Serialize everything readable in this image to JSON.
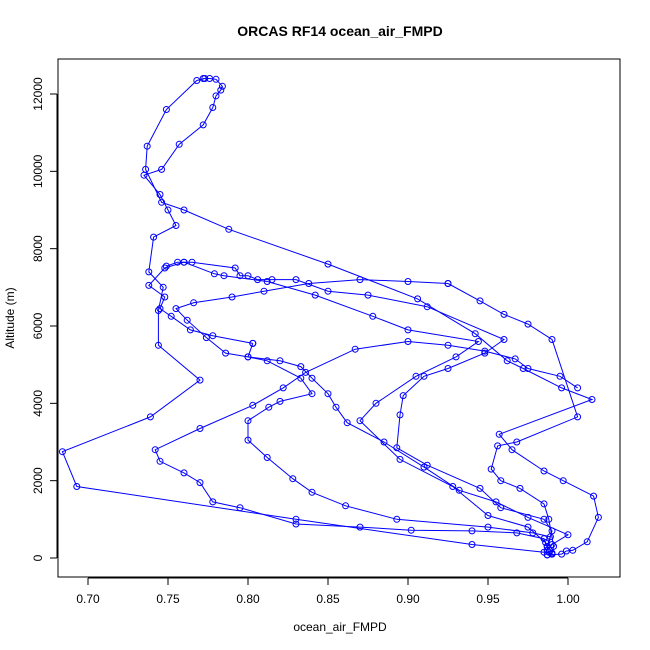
{
  "chart_data": {
    "type": "line",
    "title": "ORCAS RF14 ocean_air_FMPD",
    "xlabel": "ocean_air_FMPD",
    "ylabel": "Altitude (m)",
    "xlim": [
      0.675,
      1.025
    ],
    "ylim": [
      -300,
      12900
    ],
    "xticks": [
      0.7,
      0.75,
      0.8,
      0.85,
      0.9,
      0.95,
      1.0
    ],
    "xtick_labels": [
      "0.70",
      "0.75",
      "0.80",
      "0.85",
      "0.90",
      "0.95",
      "1.00"
    ],
    "yticks": [
      0,
      2000,
      4000,
      6000,
      8000,
      10000,
      12000
    ],
    "ytick_labels": [
      "0",
      "2000",
      "4000",
      "6000",
      "8000",
      "10000",
      "12000"
    ],
    "grid": false,
    "color": "#0000ff",
    "markers": "open-circle",
    "series": [
      {
        "values": [
          [
            0.772,
            12400
          ],
          [
            0.776,
            12400
          ],
          [
            0.78,
            12380
          ],
          [
            0.784,
            12200
          ],
          [
            0.783,
            12100
          ],
          [
            0.78,
            11950
          ],
          [
            0.778,
            11650
          ],
          [
            0.772,
            11200
          ],
          [
            0.757,
            10700
          ],
          [
            0.746,
            10050
          ],
          [
            0.735,
            9900
          ],
          [
            0.745,
            9400
          ],
          [
            0.75,
            9000
          ],
          [
            0.755,
            8600
          ],
          [
            0.741,
            8300
          ],
          [
            0.738,
            7400
          ],
          [
            0.747,
            7000
          ],
          [
            0.744,
            6400
          ],
          [
            0.744,
            5500
          ],
          [
            0.77,
            4600
          ],
          [
            0.739,
            3650
          ],
          [
            0.684,
            2750
          ],
          [
            0.693,
            1850
          ],
          [
            0.83,
            1000
          ],
          [
            0.94,
            350
          ],
          [
            0.985,
            150
          ],
          [
            0.99,
            130
          ],
          [
            0.987,
            80
          ]
        ]
      },
      {
        "values": [
          [
            0.987,
            80
          ],
          [
            0.996,
            100
          ],
          [
            0.999,
            180
          ],
          [
            1.003,
            200
          ],
          [
            1.012,
            420
          ],
          [
            1.019,
            1050
          ],
          [
            1.016,
            1600
          ],
          [
            0.997,
            2000
          ],
          [
            0.985,
            2250
          ],
          [
            0.965,
            2800
          ],
          [
            0.957,
            3200
          ],
          [
            1.015,
            4100
          ],
          [
            0.996,
            4400
          ],
          [
            0.972,
            4900
          ],
          [
            0.962,
            5100
          ],
          [
            0.942,
            5800
          ],
          [
            0.906,
            6700
          ],
          [
            0.85,
            7600
          ],
          [
            0.788,
            8500
          ],
          [
            0.76,
            9000
          ],
          [
            0.746,
            9200
          ],
          [
            0.736,
            10050
          ],
          [
            0.737,
            10650
          ],
          [
            0.749,
            11600
          ],
          [
            0.768,
            12350
          ],
          [
            0.773,
            12400
          ]
        ]
      },
      {
        "values": [
          [
            0.749,
            7550
          ],
          [
            0.756,
            7650
          ],
          [
            0.76,
            7650
          ],
          [
            0.765,
            7650
          ],
          [
            0.792,
            7500
          ],
          [
            0.795,
            7300
          ],
          [
            0.8,
            7300
          ],
          [
            0.806,
            7200
          ],
          [
            0.815,
            7200
          ],
          [
            0.83,
            7200
          ],
          [
            0.85,
            6900
          ],
          [
            0.875,
            6800
          ],
          [
            0.912,
            6500
          ],
          [
            0.96,
            5650
          ],
          [
            0.948,
            5300
          ],
          [
            0.925,
            4900
          ],
          [
            0.91,
            4700
          ],
          [
            0.897,
            4200
          ],
          [
            0.895,
            3700
          ],
          [
            0.893,
            2850
          ],
          [
            0.912,
            2400
          ],
          [
            0.945,
            1800
          ],
          [
            0.958,
            1300
          ],
          [
            0.985,
            1000
          ],
          [
            0.99,
            700
          ],
          [
            0.987,
            300
          ]
        ]
      },
      {
        "values": [
          [
            0.987,
            300
          ],
          [
            0.986,
            400
          ],
          [
            0.975,
            800
          ],
          [
            0.95,
            1100
          ],
          [
            0.928,
            1850
          ],
          [
            0.895,
            2550
          ],
          [
            0.87,
            3550
          ],
          [
            0.88,
            4000
          ],
          [
            0.905,
            4700
          ],
          [
            0.93,
            5200
          ],
          [
            0.944,
            5600
          ],
          [
            0.9,
            5900
          ],
          [
            0.878,
            6250
          ],
          [
            0.842,
            6800
          ],
          [
            0.812,
            7150
          ],
          [
            0.785,
            7300
          ],
          [
            0.779,
            7350
          ],
          [
            0.76,
            7650
          ],
          [
            0.748,
            7500
          ],
          [
            0.738,
            7050
          ],
          [
            0.748,
            6750
          ],
          [
            0.745,
            6450
          ],
          [
            0.752,
            6250
          ],
          [
            0.764,
            5900
          ],
          [
            0.778,
            5750
          ],
          [
            0.803,
            5550
          ]
        ]
      },
      {
        "values": [
          [
            0.803,
            5550
          ],
          [
            0.8,
            5200
          ],
          [
            0.812,
            5100
          ],
          [
            0.833,
            4650
          ],
          [
            0.84,
            4250
          ],
          [
            0.82,
            4050
          ],
          [
            0.813,
            3900
          ],
          [
            0.8,
            3550
          ],
          [
            0.8,
            3050
          ],
          [
            0.812,
            2600
          ],
          [
            0.828,
            2050
          ],
          [
            0.84,
            1700
          ],
          [
            0.861,
            1350
          ],
          [
            0.893,
            1000
          ],
          [
            0.95,
            800
          ],
          [
            0.978,
            650
          ],
          [
            0.989,
            550
          ],
          [
            0.987,
            200
          ]
        ]
      },
      {
        "values": [
          [
            0.987,
            200
          ],
          [
            0.99,
            350
          ],
          [
            1.0,
            600
          ],
          [
            0.975,
            1050
          ],
          [
            0.955,
            1450
          ],
          [
            0.932,
            1750
          ],
          [
            0.91,
            2350
          ],
          [
            0.885,
            3000
          ],
          [
            0.862,
            3500
          ],
          [
            0.855,
            3900
          ],
          [
            0.85,
            4250
          ],
          [
            0.84,
            4650
          ],
          [
            0.833,
            4950
          ],
          [
            0.82,
            5100
          ],
          [
            0.8,
            5200
          ],
          [
            0.786,
            5300
          ],
          [
            0.774,
            5700
          ],
          [
            0.762,
            6150
          ],
          [
            0.755,
            6450
          ],
          [
            0.766,
            6600
          ],
          [
            0.79,
            6750
          ],
          [
            0.81,
            6900
          ],
          [
            0.838,
            7100
          ],
          [
            0.87,
            7200
          ],
          [
            0.9,
            7150
          ],
          [
            0.925,
            7100
          ]
        ]
      },
      {
        "values": [
          [
            0.925,
            7100
          ],
          [
            0.945,
            6650
          ],
          [
            0.96,
            6300
          ],
          [
            0.975,
            6050
          ],
          [
            0.99,
            5650
          ],
          [
            1.006,
            3650
          ],
          [
            0.968,
            3000
          ],
          [
            0.956,
            2900
          ],
          [
            0.952,
            2300
          ],
          [
            0.958,
            2000
          ],
          [
            0.97,
            1800
          ],
          [
            0.985,
            1400
          ],
          [
            0.988,
            1000
          ],
          [
            0.991,
            300
          ],
          [
            0.99,
            100
          ]
        ]
      },
      {
        "values": [
          [
            0.99,
            100
          ],
          [
            0.988,
            150
          ],
          [
            0.985,
            500
          ],
          [
            0.968,
            650
          ],
          [
            0.94,
            700
          ],
          [
            0.902,
            720
          ],
          [
            0.87,
            800
          ],
          [
            0.83,
            880
          ],
          [
            0.795,
            1300
          ],
          [
            0.778,
            1450
          ],
          [
            0.77,
            1950
          ],
          [
            0.76,
            2200
          ],
          [
            0.745,
            2500
          ],
          [
            0.742,
            2800
          ],
          [
            0.77,
            3350
          ],
          [
            0.803,
            3950
          ],
          [
            0.822,
            4400
          ],
          [
            0.836,
            4800
          ],
          [
            0.867,
            5400
          ],
          [
            0.9,
            5600
          ],
          [
            0.925,
            5500
          ],
          [
            0.948,
            5350
          ],
          [
            0.967,
            5150
          ],
          [
            0.975,
            4900
          ],
          [
            0.995,
            4700
          ],
          [
            1.006,
            4400
          ]
        ]
      }
    ]
  }
}
